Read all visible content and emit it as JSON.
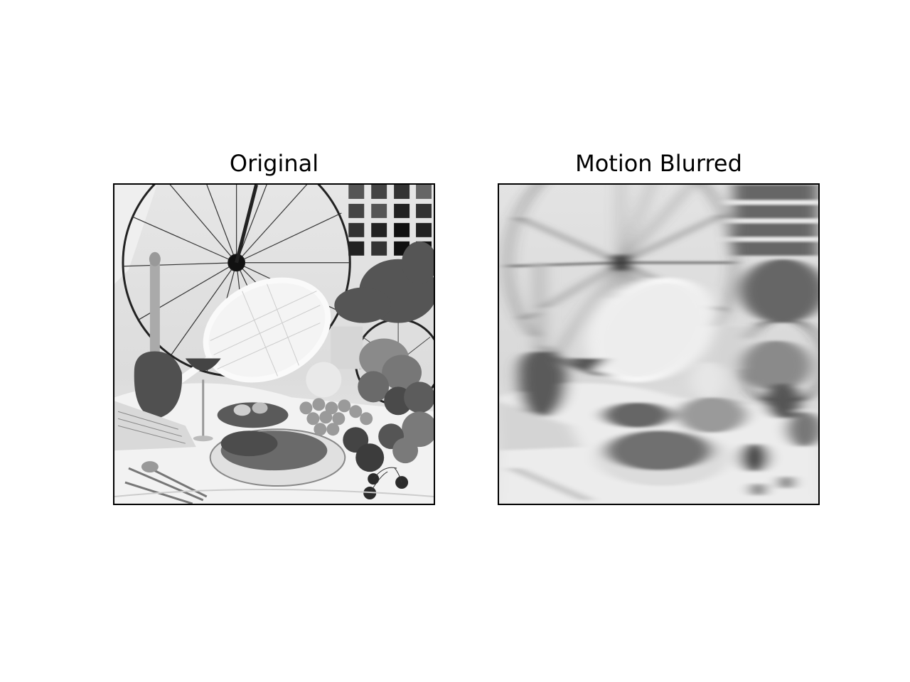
{
  "figure": {
    "background": "#ffffff",
    "panels": [
      {
        "title": "Original",
        "image": "still-life-photo-sharp",
        "tone": "grayscale"
      },
      {
        "title": "Motion Blurred",
        "image": "still-life-photo-motion-blurred",
        "tone": "grayscale"
      }
    ]
  }
}
